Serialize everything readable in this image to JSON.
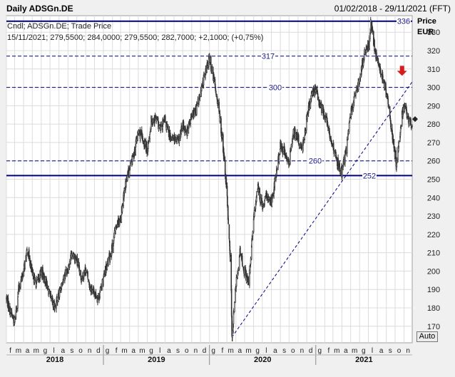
{
  "header": {
    "title": "Daily ADSGn.DE",
    "date_range": "01/02/2018 - 29/11/2021 (FFT)"
  },
  "info": {
    "line1": "Cndl; ADSGn.DE; Trade Price",
    "line2": "15/11/2021; 279,5500; 284,0000; 279,5500; 282,7000; +2,1000; (+0,75%)"
  },
  "auto_button": {
    "label": "Auto"
  },
  "colors": {
    "candle": "#333333",
    "support_line": "#00007f",
    "price_label": "#1a1a8c",
    "arrow": "#d71c1c",
    "background": "#ffffff",
    "grid": "#dcdcdc"
  },
  "chart_data": {
    "type": "candlestick",
    "title": "Daily ADSGn.DE",
    "ylabel": "Price EUR",
    "ylabel_lines": [
      "Price",
      "EUR"
    ],
    "ylim": [
      161,
      339
    ],
    "y_ticks": [
      170,
      180,
      190,
      200,
      210,
      220,
      230,
      240,
      250,
      260,
      270,
      280,
      290,
      300,
      310,
      320,
      330
    ],
    "month_labels": [
      "f",
      "m",
      "a",
      "m",
      "g",
      "l",
      "a",
      "s",
      "o",
      "n",
      "d",
      "g",
      "f",
      "m",
      "a",
      "m",
      "g",
      "l",
      "a",
      "s",
      "o",
      "n",
      "d",
      "g",
      "f",
      "m",
      "a",
      "m",
      "g",
      "l",
      "a",
      "s",
      "o",
      "n",
      "d",
      "g",
      "f",
      "m",
      "a",
      "m",
      "g",
      "l",
      "a",
      "s",
      "o",
      "n"
    ],
    "years": [
      "2018",
      "2019",
      "2020",
      "2021"
    ],
    "x_range": [
      "2018-02-01",
      "2021-11-29"
    ],
    "last_price": 282.7,
    "horizontal_levels": [
      {
        "value": 336,
        "label": "336",
        "style": "solid"
      },
      {
        "value": 317,
        "label": "317",
        "style": "dashed"
      },
      {
        "value": 300,
        "label": "300",
        "style": "dashed"
      },
      {
        "value": 260,
        "label": "260",
        "style": "dashed"
      },
      {
        "value": 252,
        "label": "252",
        "style": "solid"
      }
    ],
    "trendline": {
      "start": [
        "2020-03-18",
        164
      ],
      "end": [
        "2021-11-29",
        303
      ]
    },
    "annotations": [
      {
        "type": "down-arrow",
        "date": "2021-10-25",
        "value": 309
      }
    ],
    "price_series": [
      [
        "2018-02-01",
        185
      ],
      [
        "2018-02-15",
        178
      ],
      [
        "2018-03-01",
        172
      ],
      [
        "2018-03-15",
        190
      ],
      [
        "2018-04-01",
        200
      ],
      [
        "2018-04-15",
        212
      ],
      [
        "2018-05-01",
        198
      ],
      [
        "2018-05-15",
        193
      ],
      [
        "2018-06-01",
        200
      ],
      [
        "2018-06-15",
        195
      ],
      [
        "2018-07-01",
        186
      ],
      [
        "2018-07-15",
        180
      ],
      [
        "2018-08-01",
        187
      ],
      [
        "2018-08-15",
        196
      ],
      [
        "2018-09-01",
        202
      ],
      [
        "2018-09-15",
        210
      ],
      [
        "2018-10-01",
        206
      ],
      [
        "2018-10-15",
        196
      ],
      [
        "2018-11-01",
        201
      ],
      [
        "2018-11-15",
        192
      ],
      [
        "2018-12-01",
        188
      ],
      [
        "2018-12-15",
        185
      ],
      [
        "2019-01-01",
        196
      ],
      [
        "2019-01-15",
        204
      ],
      [
        "2019-02-01",
        213
      ],
      [
        "2019-02-15",
        226
      ],
      [
        "2019-03-01",
        229
      ],
      [
        "2019-03-15",
        245
      ],
      [
        "2019-04-01",
        256
      ],
      [
        "2019-04-15",
        263
      ],
      [
        "2019-05-01",
        276
      ],
      [
        "2019-05-15",
        272
      ],
      [
        "2019-06-01",
        266
      ],
      [
        "2019-06-15",
        282
      ],
      [
        "2019-07-01",
        283
      ],
      [
        "2019-07-15",
        277
      ],
      [
        "2019-08-01",
        282
      ],
      [
        "2019-08-15",
        274
      ],
      [
        "2019-09-01",
        272
      ],
      [
        "2019-09-15",
        270
      ],
      [
        "2019-10-01",
        279
      ],
      [
        "2019-10-15",
        276
      ],
      [
        "2019-11-01",
        284
      ],
      [
        "2019-11-15",
        288
      ],
      [
        "2019-12-01",
        296
      ],
      [
        "2019-12-15",
        307
      ],
      [
        "2020-01-01",
        316
      ],
      [
        "2020-01-15",
        305
      ],
      [
        "2020-02-01",
        290
      ],
      [
        "2020-02-15",
        270
      ],
      [
        "2020-03-01",
        242
      ],
      [
        "2020-03-15",
        200
      ],
      [
        "2020-03-18",
        164
      ],
      [
        "2020-04-01",
        192
      ],
      [
        "2020-04-15",
        210
      ],
      [
        "2020-05-01",
        200
      ],
      [
        "2020-05-15",
        193
      ],
      [
        "2020-06-01",
        228
      ],
      [
        "2020-06-15",
        246
      ],
      [
        "2020-07-01",
        234
      ],
      [
        "2020-07-15",
        241
      ],
      [
        "2020-08-01",
        238
      ],
      [
        "2020-08-15",
        250
      ],
      [
        "2020-09-01",
        268
      ],
      [
        "2020-09-15",
        265
      ],
      [
        "2020-10-01",
        258
      ],
      [
        "2020-10-15",
        276
      ],
      [
        "2020-11-01",
        272
      ],
      [
        "2020-11-15",
        266
      ],
      [
        "2020-12-01",
        283
      ],
      [
        "2020-12-15",
        294
      ],
      [
        "2021-01-01",
        300
      ],
      [
        "2021-01-15",
        290
      ],
      [
        "2021-02-01",
        285
      ],
      [
        "2021-02-15",
        277
      ],
      [
        "2021-03-01",
        268
      ],
      [
        "2021-03-15",
        260
      ],
      [
        "2021-04-01",
        253
      ],
      [
        "2021-04-15",
        266
      ],
      [
        "2021-05-01",
        285
      ],
      [
        "2021-05-15",
        296
      ],
      [
        "2021-06-01",
        303
      ],
      [
        "2021-06-15",
        318
      ],
      [
        "2021-07-01",
        322
      ],
      [
        "2021-07-10",
        336
      ],
      [
        "2021-07-25",
        318
      ],
      [
        "2021-08-10",
        310
      ],
      [
        "2021-08-25",
        302
      ],
      [
        "2021-09-10",
        288
      ],
      [
        "2021-09-25",
        270
      ],
      [
        "2021-10-05",
        258
      ],
      [
        "2021-10-15",
        270
      ],
      [
        "2021-10-25",
        285
      ],
      [
        "2021-11-05",
        290
      ],
      [
        "2021-11-15",
        282.7
      ],
      [
        "2021-11-29",
        280
      ]
    ]
  }
}
